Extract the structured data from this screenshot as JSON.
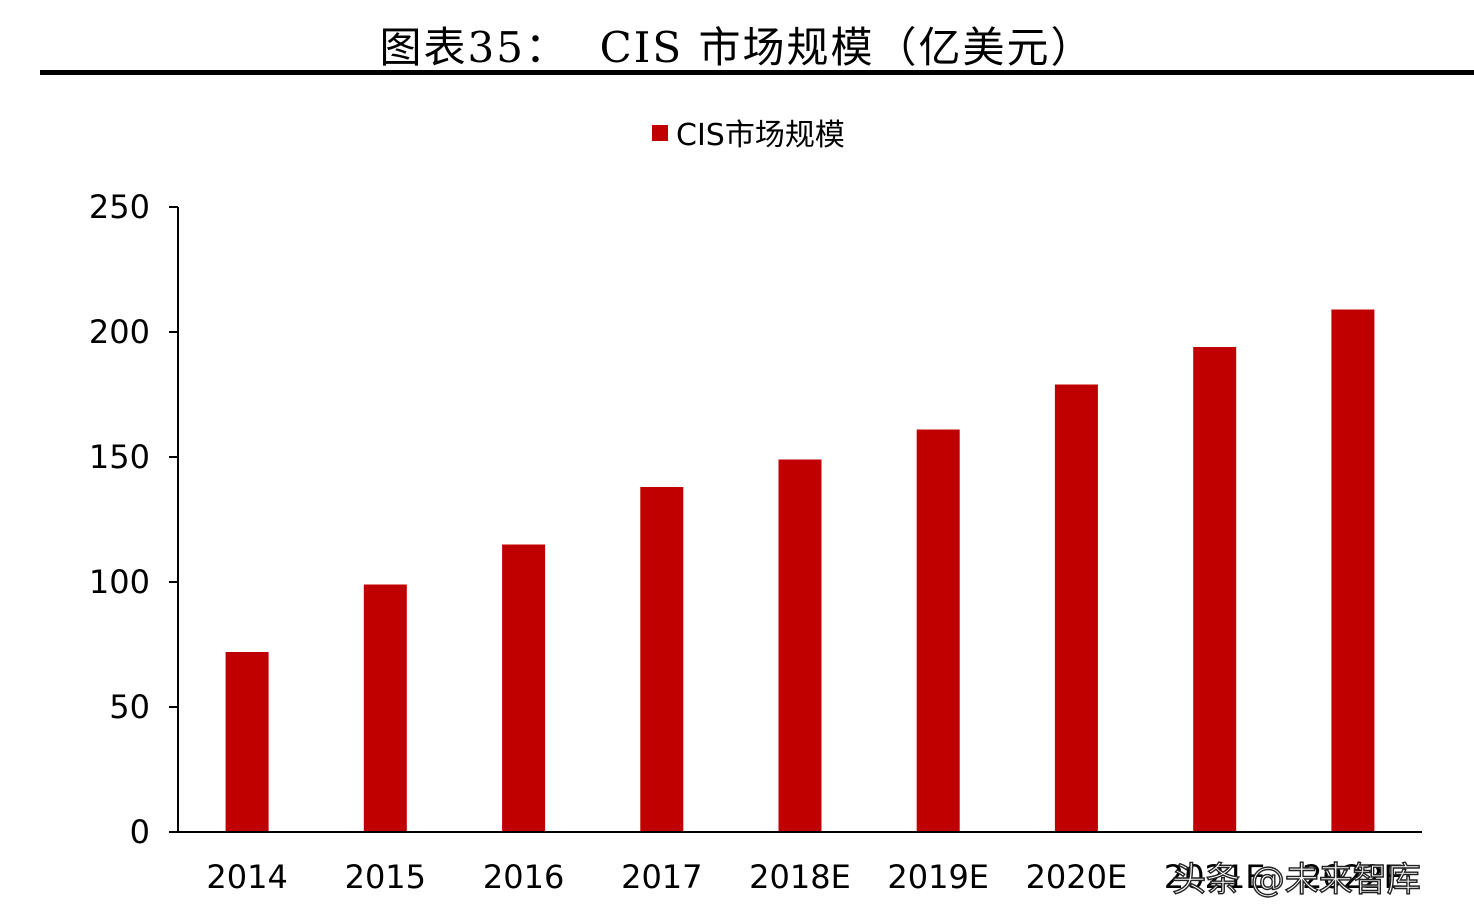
{
  "header": {
    "title": "图表35：  CIS 市场规模（亿美元）"
  },
  "watermark": {
    "text": "头条 @未来智库"
  },
  "colors": {
    "bar": "#c00000",
    "axis": "#000000",
    "text": "#000000"
  },
  "chart_data": {
    "type": "bar",
    "title": "",
    "legend": {
      "position": "top-center"
    },
    "grid": false,
    "categories": [
      "2014",
      "2015",
      "2016",
      "2017",
      "2018E",
      "2019E",
      "2020E",
      "2021E",
      "2022E"
    ],
    "series": [
      {
        "name": "CIS市场规模",
        "values": [
          72,
          99,
          115,
          138,
          149,
          161,
          179,
          194,
          209
        ]
      }
    ],
    "yticks": [
      "0",
      "50",
      "100",
      "150",
      "200",
      "250"
    ],
    "ylim": [
      0,
      250
    ],
    "xlabel": "",
    "ylabel": ""
  }
}
